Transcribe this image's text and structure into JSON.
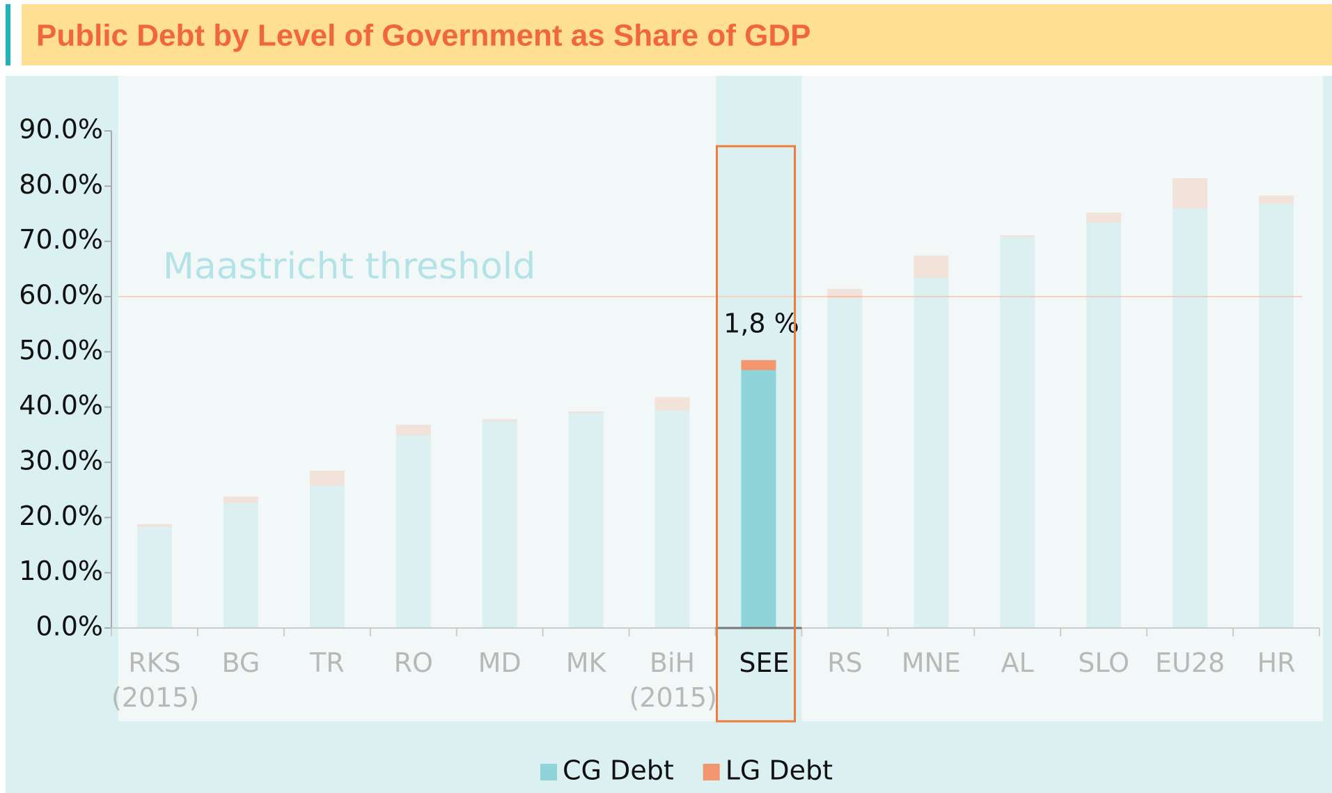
{
  "chart_data": {
    "type": "stacked_bar",
    "title": "Public Debt by Level of Government as Share of GDP",
    "categories": [
      "RKS\n(2015)",
      "BG",
      "TR",
      "RO",
      "MD",
      "MK",
      "BiH\n(2015)",
      "SEE",
      "RS",
      "MNE",
      "AL",
      "SLO",
      "EU28",
      "HR"
    ],
    "highlight": "SEE",
    "series": [
      {
        "name": "CG Debt",
        "color": "#8fd4d9",
        "values": [
          18.3,
          22.6,
          25.8,
          34.9,
          37.4,
          38.9,
          39.4,
          46.7,
          59.7,
          63.4,
          70.8,
          73.4,
          76.0,
          76.8
        ]
      },
      {
        "name": "LG Debt",
        "color": "#f2966f",
        "values": [
          0.5,
          1.2,
          2.7,
          1.9,
          0.4,
          0.3,
          2.4,
          1.8,
          1.7,
          4.0,
          0.3,
          1.8,
          5.4,
          1.5
        ],
        "value_labels": [
          null,
          null,
          null,
          null,
          null,
          null,
          null,
          "1,8 %",
          null,
          null,
          null,
          null,
          null,
          null
        ]
      }
    ],
    "threshold": {
      "label": "Maastricht threshold",
      "value": 60
    },
    "ylim": [
      0,
      90
    ],
    "yticks": [
      {
        "value": 0,
        "label": "0.0%"
      },
      {
        "value": 10,
        "label": "10.0%"
      },
      {
        "value": 20,
        "label": "20.0%"
      },
      {
        "value": 30,
        "label": "30.0%"
      },
      {
        "value": 40,
        "label": "40.0%"
      },
      {
        "value": 50,
        "label": "50.0%"
      },
      {
        "value": 60,
        "label": "60.0%"
      },
      {
        "value": 70,
        "label": "70.0%"
      },
      {
        "value": 80,
        "label": "80.0%"
      },
      {
        "value": 90,
        "label": "90.0%"
      }
    ],
    "legend": "bottom"
  }
}
